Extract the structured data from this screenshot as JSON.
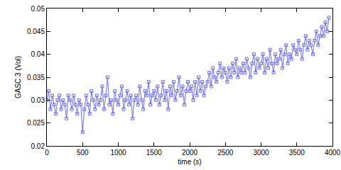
{
  "chart_data": {
    "type": "scatter",
    "x_label": "time (s)",
    "y_label": "GASC 3 (Vol)",
    "marker": "square-open",
    "line_style": "solid",
    "color": "#6a6aff",
    "grid": false,
    "x": [
      0,
      25,
      50,
      75,
      100,
      125,
      150,
      175,
      200,
      225,
      250,
      275,
      300,
      325,
      350,
      375,
      400,
      425,
      450,
      475,
      500,
      525,
      550,
      575,
      600,
      625,
      650,
      675,
      700,
      725,
      750,
      775,
      800,
      825,
      850,
      875,
      900,
      925,
      950,
      975,
      1000,
      1025,
      1050,
      1075,
      1100,
      1125,
      1150,
      1175,
      1200,
      1225,
      1250,
      1275,
      1300,
      1325,
      1350,
      1375,
      1400,
      1425,
      1450,
      1475,
      1500,
      1525,
      1550,
      1575,
      1600,
      1625,
      1650,
      1675,
      1700,
      1725,
      1750,
      1775,
      1800,
      1825,
      1850,
      1875,
      1900,
      1925,
      1950,
      1975,
      2000,
      2025,
      2050,
      2075,
      2100,
      2125,
      2150,
      2175,
      2200,
      2225,
      2250,
      2275,
      2300,
      2325,
      2350,
      2375,
      2400,
      2425,
      2450,
      2475,
      2500,
      2525,
      2550,
      2575,
      2600,
      2625,
      2650,
      2675,
      2700,
      2725,
      2750,
      2775,
      2800,
      2825,
      2850,
      2875,
      2900,
      2925,
      2950,
      2975,
      3000,
      3025,
      3050,
      3075,
      3100,
      3125,
      3150,
      3175,
      3200,
      3225,
      3250,
      3275,
      3300,
      3325,
      3350,
      3375,
      3400,
      3425,
      3450,
      3475,
      3500,
      3525,
      3550,
      3575,
      3600,
      3625,
      3650,
      3675,
      3700,
      3725,
      3750,
      3775,
      3800,
      3825,
      3850,
      3875,
      3900,
      3925,
      3950
    ],
    "values": [
      0.03,
      0.032,
      0.028,
      0.031,
      0.029,
      0.027,
      0.03,
      0.031,
      0.028,
      0.03,
      0.029,
      0.026,
      0.031,
      0.03,
      0.028,
      0.031,
      0.029,
      0.027,
      0.03,
      0.029,
      0.023,
      0.028,
      0.031,
      0.029,
      0.027,
      0.032,
      0.03,
      0.028,
      0.031,
      0.029,
      0.03,
      0.033,
      0.028,
      0.031,
      0.035,
      0.029,
      0.03,
      0.027,
      0.032,
      0.03,
      0.029,
      0.031,
      0.033,
      0.028,
      0.03,
      0.032,
      0.029,
      0.031,
      0.026,
      0.03,
      0.031,
      0.029,
      0.033,
      0.03,
      0.028,
      0.032,
      0.031,
      0.034,
      0.029,
      0.031,
      0.032,
      0.03,
      0.033,
      0.029,
      0.031,
      0.034,
      0.03,
      0.032,
      0.028,
      0.033,
      0.031,
      0.034,
      0.03,
      0.032,
      0.035,
      0.031,
      0.033,
      0.029,
      0.032,
      0.034,
      0.032,
      0.033,
      0.03,
      0.034,
      0.031,
      0.035,
      0.032,
      0.034,
      0.031,
      0.033,
      0.034,
      0.036,
      0.033,
      0.037,
      0.035,
      0.034,
      0.036,
      0.038,
      0.035,
      0.037,
      0.036,
      0.034,
      0.037,
      0.035,
      0.038,
      0.036,
      0.039,
      0.035,
      0.037,
      0.036,
      0.038,
      0.036,
      0.039,
      0.037,
      0.035,
      0.038,
      0.04,
      0.036,
      0.039,
      0.037,
      0.038,
      0.04,
      0.036,
      0.039,
      0.037,
      0.041,
      0.038,
      0.036,
      0.04,
      0.038,
      0.039,
      0.041,
      0.037,
      0.04,
      0.042,
      0.038,
      0.04,
      0.039,
      0.042,
      0.041,
      0.04,
      0.043,
      0.041,
      0.039,
      0.042,
      0.044,
      0.041,
      0.043,
      0.042,
      0.04,
      0.043,
      0.045,
      0.042,
      0.044,
      0.046,
      0.044,
      0.047,
      0.045,
      0.048
    ],
    "xlim": [
      0,
      4000
    ],
    "xticks": [
      0,
      500,
      1000,
      1500,
      2000,
      2500,
      3000,
      3500,
      4000
    ],
    "ylim": [
      0.02,
      0.05
    ],
    "yticks": [
      0.02,
      0.025,
      0.03,
      0.035,
      0.04,
      0.045,
      0.05
    ]
  }
}
